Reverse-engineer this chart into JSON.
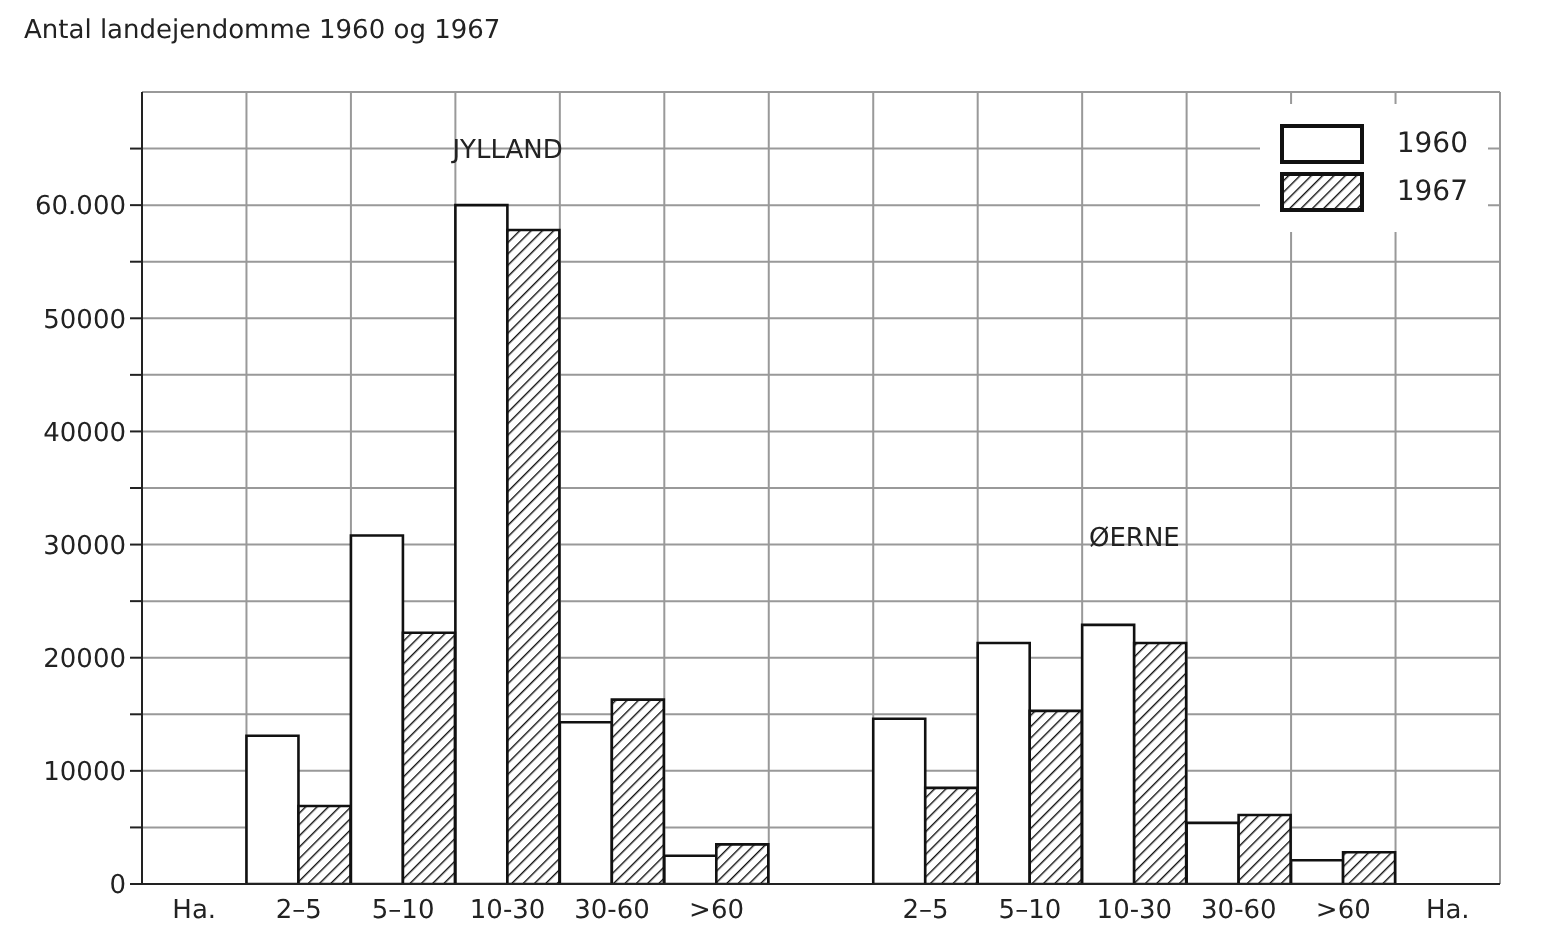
{
  "chart_data": {
    "type": "bar",
    "title": "Antal landejendomme 1960 og 1967",
    "categories": [
      "Ha.",
      "2–5",
      "5–10",
      "10-30",
      "30-60",
      ">60",
      null,
      "2–5",
      "5–10",
      "10-30",
      "30-60",
      ">60",
      "Ha."
    ],
    "series": [
      {
        "name": "1960",
        "color": "#ffffff",
        "values": [
          null,
          13100,
          30800,
          60000,
          14300,
          2500,
          null,
          14600,
          21300,
          22900,
          5400,
          2100,
          null
        ]
      },
      {
        "name": "1967",
        "color": "#111111",
        "values": [
          null,
          6900,
          22200,
          57800,
          16300,
          3500,
          null,
          8500,
          15300,
          21300,
          6100,
          2800,
          null
        ]
      }
    ],
    "ylim": [
      0,
      70000
    ],
    "yticks": [
      0,
      {
        "value": 5000,
        "label": null
      },
      10000,
      {
        "value": 15000,
        "label": null
      },
      20000,
      {
        "value": 25000,
        "label": null
      },
      30000,
      {
        "value": 35000,
        "label": null
      },
      40000,
      {
        "value": 45000,
        "label": null
      },
      50000,
      {
        "value": 55000,
        "label": null
      },
      {
        "value": 60000,
        "label": "60.000"
      },
      {
        "value": 65000,
        "label": null
      }
    ],
    "grid": true,
    "legend": "top right",
    "annotations": [
      "JYLLAND",
      "ØERNE"
    ]
  }
}
